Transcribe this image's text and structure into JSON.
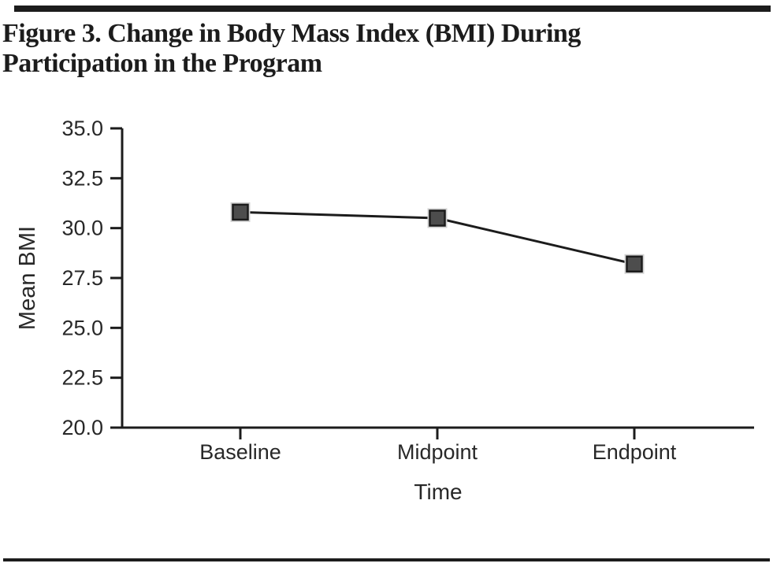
{
  "figure": {
    "title": "Figure 3. Change in Body Mass Index (BMI) During Participation in the Program",
    "title_lines": [
      "Figure 3. Change in Body Mass Index (BMI) During",
      "Participation in the Program"
    ]
  },
  "chart_data": {
    "type": "line",
    "title": "Figure 3. Change in Body Mass Index (BMI) During Participation in the Program",
    "categories": [
      "Baseline",
      "Midpoint",
      "Endpoint"
    ],
    "series": [
      {
        "name": "Mean BMI",
        "values": [
          30.8,
          30.5,
          28.2
        ]
      }
    ],
    "xlabel": "Time",
    "ylabel": "Mean BMI",
    "ylim": [
      20.0,
      35.0
    ],
    "ytick_step": 2.5,
    "yticks": [
      "20.0",
      "22.5",
      "25.0",
      "27.5",
      "30.0",
      "32.5",
      "35.0"
    ],
    "grid": false,
    "legend": "none",
    "marker": "square",
    "colors": {
      "line": "#1c1c1c",
      "axis": "#1c1c1c",
      "marker_fill": "#4d4d4d",
      "marker_border": "#1c1c1c",
      "marker_halo": "#d2d2d2",
      "text": "#282828",
      "rule": "#1c1c1c"
    }
  }
}
